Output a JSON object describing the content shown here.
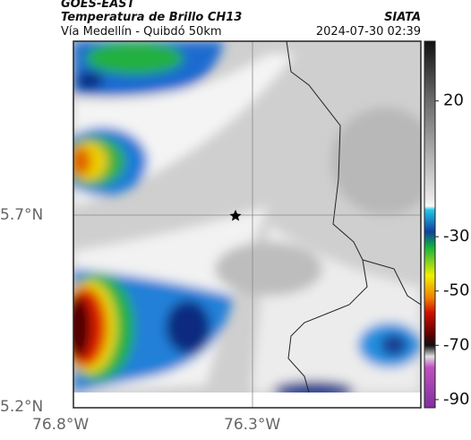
{
  "header": {
    "title": "GOES-EAST",
    "subtitle": "Temperatura de Brillo CH13",
    "route": "Vía Medellín - Quibdó 50km",
    "source": "SIATA",
    "timestamp": "2024-07-30 02:39"
  },
  "map": {
    "lat_labels": [
      "5.7°N",
      "5.2°N"
    ],
    "lon_labels": [
      "76.8°W",
      "76.3°W"
    ]
  },
  "colorbar": {
    "range": [
      -93,
      42
    ],
    "ticks": [
      20,
      -30,
      -50,
      -70,
      -90
    ]
  }
}
